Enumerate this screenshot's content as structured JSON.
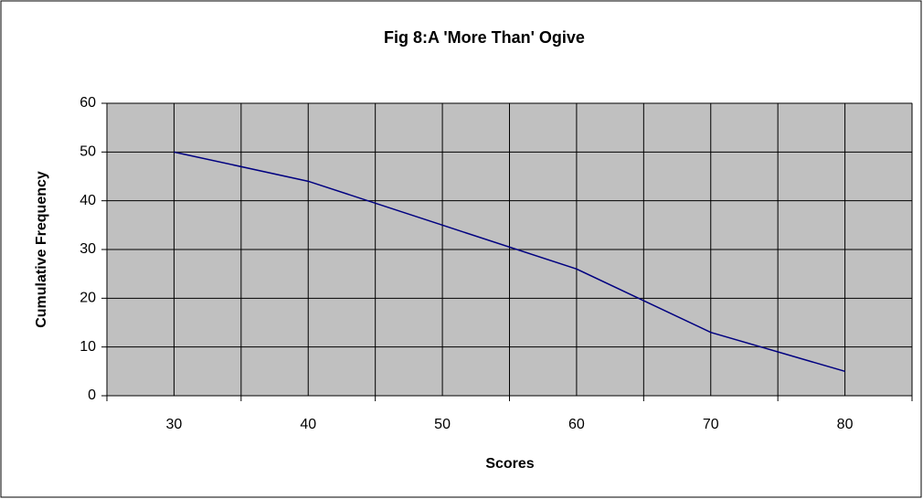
{
  "chart_data": {
    "type": "line",
    "title": "Fig 8:A 'More Than' Ogive",
    "x_label": "Scores",
    "y_label": "Cumulative Frequency",
    "categories": [
      "30",
      "40",
      "50",
      "60",
      "70",
      "80"
    ],
    "values": [
      50,
      44,
      35,
      26,
      13,
      5
    ],
    "color": "#000080",
    "ylim": [
      0,
      60
    ],
    "yticks": [
      0,
      10,
      20,
      30,
      40,
      50,
      60
    ],
    "grid": true
  }
}
